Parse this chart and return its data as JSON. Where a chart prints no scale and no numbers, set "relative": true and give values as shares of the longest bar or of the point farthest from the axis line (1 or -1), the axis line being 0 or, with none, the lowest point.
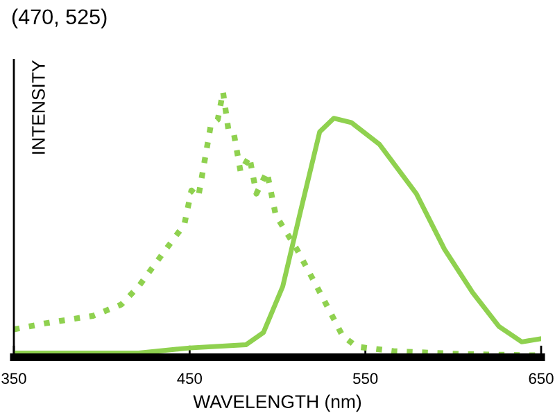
{
  "chart_data": {
    "type": "line",
    "title": "(470, 525)",
    "xlabel": "WAVELENGTH (nm)",
    "ylabel": "INTENSITY",
    "relative": true,
    "xlim": [
      350,
      650
    ],
    "xticks": [
      350,
      450,
      550,
      650
    ],
    "grid": false,
    "legend": false,
    "marker": "none",
    "series": [
      {
        "color": "#8fd14f",
        "line_style": "dotted",
        "x": [
          350,
          368,
          395,
          411,
          421,
          434,
          447,
          451,
          455,
          462,
          466,
          469,
          472,
          475,
          479,
          484,
          488,
          494,
          499,
          511,
          526,
          537,
          545,
          566,
          605,
          650
        ],
        "values": [
          0.105,
          0.128,
          0.156,
          0.198,
          0.267,
          0.384,
          0.5,
          0.628,
          0.605,
          0.872,
          0.895,
          1.0,
          0.86,
          0.849,
          0.698,
          0.756,
          0.616,
          0.698,
          0.535,
          0.407,
          0.221,
          0.081,
          0.04,
          0.023,
          0.012,
          0.007
        ]
      },
      {
        "color": "#8fd14f",
        "line_style": "solid",
        "x": [
          350,
          421,
          450,
          482,
          492,
          503,
          513,
          524,
          532,
          542,
          558,
          579,
          595,
          611,
          626,
          639,
          650
        ],
        "values": [
          0.016,
          0.016,
          0.035,
          0.047,
          0.093,
          0.267,
          0.547,
          0.849,
          0.9,
          0.884,
          0.802,
          0.616,
          0.407,
          0.244,
          0.116,
          0.058,
          0.07
        ]
      }
    ]
  }
}
